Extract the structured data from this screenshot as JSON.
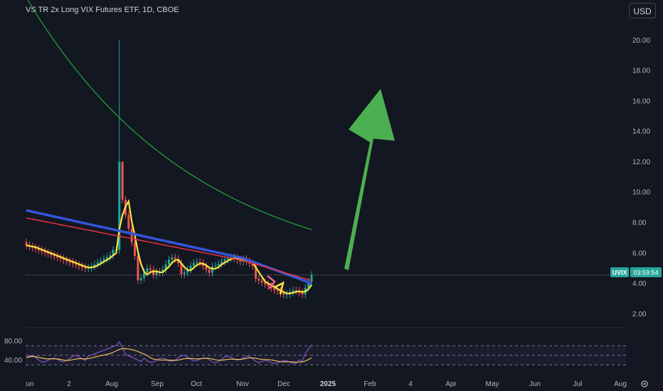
{
  "header": {
    "title": "VS TR 2x Long VIX Futures ETF, 1D, CBOE",
    "currency": "USD"
  },
  "price_label": {
    "ticker": "UVIX",
    "countdown": "03:59:54"
  },
  "colors": {
    "background": "#131722",
    "candle_up": "#26a69a",
    "candle_down": "#ef5350",
    "ma_red": "#e8323c",
    "ma_blue": "#3455db",
    "ma_green": "#22a93a",
    "ma_yellow": "#f7e53a",
    "arrow_green": "#4caf50",
    "rsi_line": "#7e57c2",
    "rsi_ma": "#f0c05a"
  },
  "chart_data": [
    {
      "type": "candlestick",
      "title": "VS TR 2x Long VIX Futures ETF, 1D, CBOE",
      "ylim": [
        1.5,
        21.0
      ],
      "y_ticks": [
        "20.00",
        "18.00",
        "16.00",
        "14.00",
        "12.00",
        "10.00",
        "8.00",
        "6.00",
        "4.00",
        "2.00"
      ],
      "x_ticks": [
        "un",
        "2",
        "Aug",
        "Sep",
        "Oct",
        "Nov",
        "Dec",
        "2025",
        "Feb",
        "4",
        "Apr",
        "May",
        "Jun",
        "Jul",
        "Aug"
      ],
      "last_price": 4.55,
      "notable_points": {
        "spike_high": 20.0,
        "late_low": 3.1,
        "last_close": 4.55
      },
      "annotation": "green upward arrow"
    },
    {
      "type": "line",
      "title": "",
      "ylim": [
        20,
        100
      ],
      "y_ticks": [
        "80.00",
        "40.00"
      ],
      "levels": [
        70,
        50,
        30
      ]
    }
  ],
  "footer": {
    "settings_icon": "gear-icon"
  }
}
